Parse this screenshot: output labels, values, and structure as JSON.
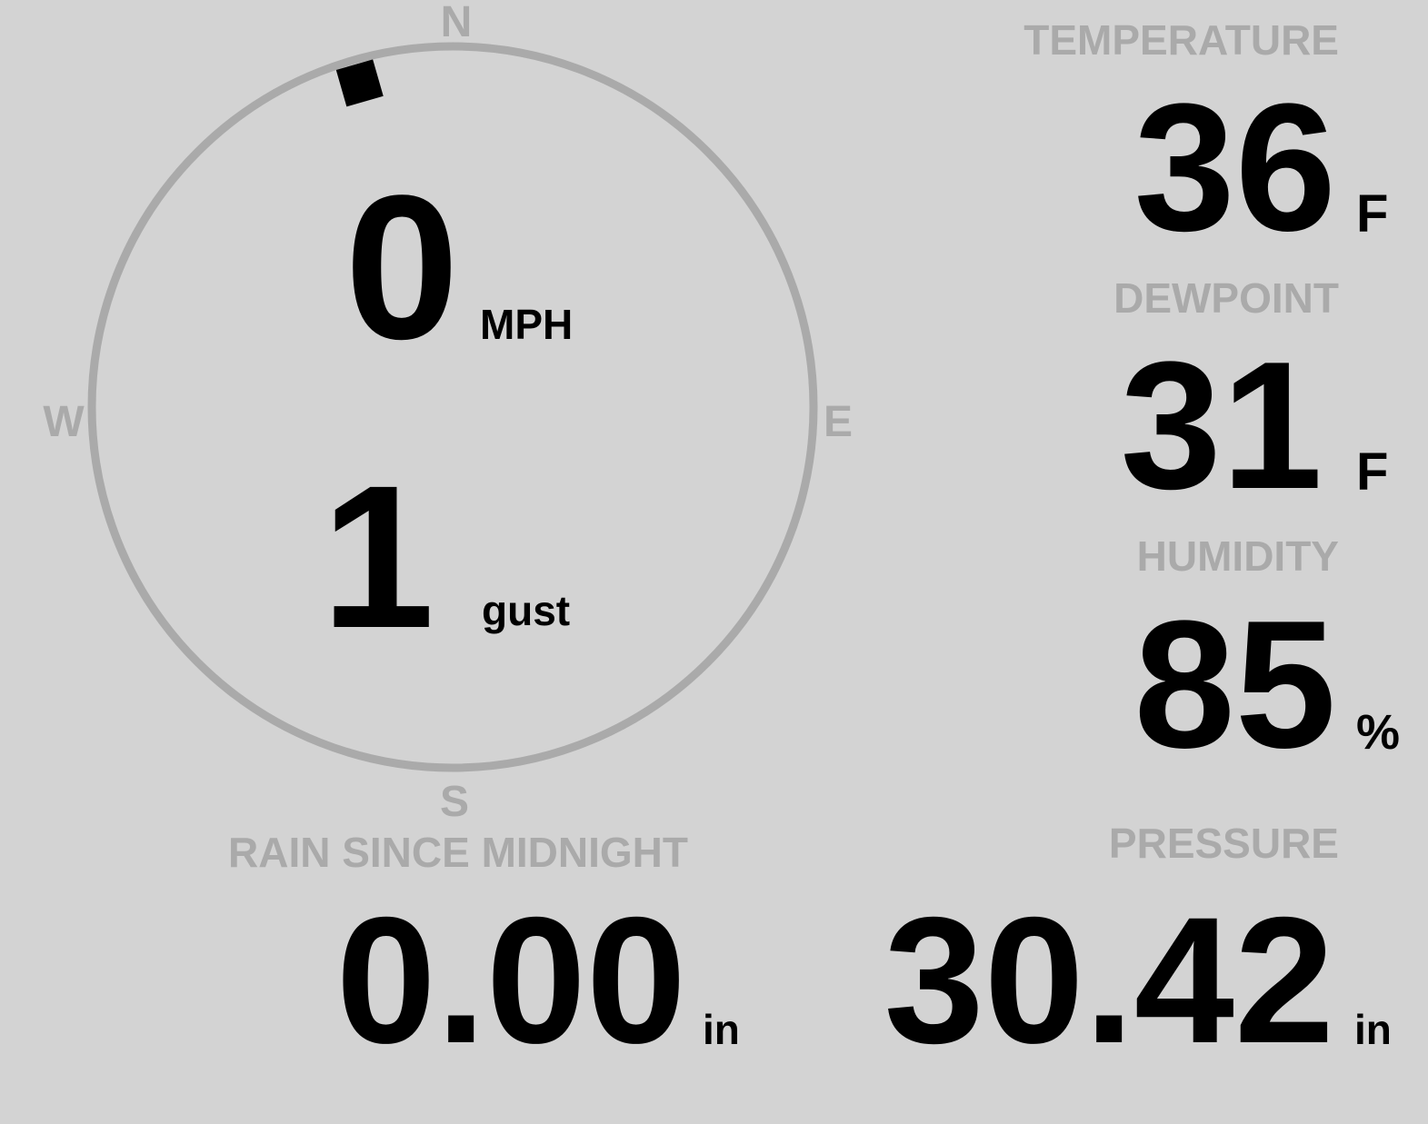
{
  "colors": {
    "background": "#d3d3d3",
    "label": "#aaaaaa",
    "value": "#000000",
    "compass_ring": "#aaaaaa",
    "wind_marker": "#000000"
  },
  "compass": {
    "north": "N",
    "east": "E",
    "south": "S",
    "west": "W",
    "wind_direction_deg": 344
  },
  "wind": {
    "speed": "0",
    "speed_unit": "MPH",
    "gust": "1",
    "gust_unit": "gust"
  },
  "temperature": {
    "label": "TEMPERATURE",
    "value": "36",
    "unit": "F"
  },
  "dewpoint": {
    "label": "DEWPOINT",
    "value": "31",
    "unit": "F"
  },
  "humidity": {
    "label": "HUMIDITY",
    "value": "85",
    "unit": "%"
  },
  "pressure": {
    "label": "PRESSURE",
    "value": "30.42",
    "unit": "in"
  },
  "rain": {
    "label": "RAIN SINCE MIDNIGHT",
    "value": "0.00",
    "unit": "in"
  }
}
